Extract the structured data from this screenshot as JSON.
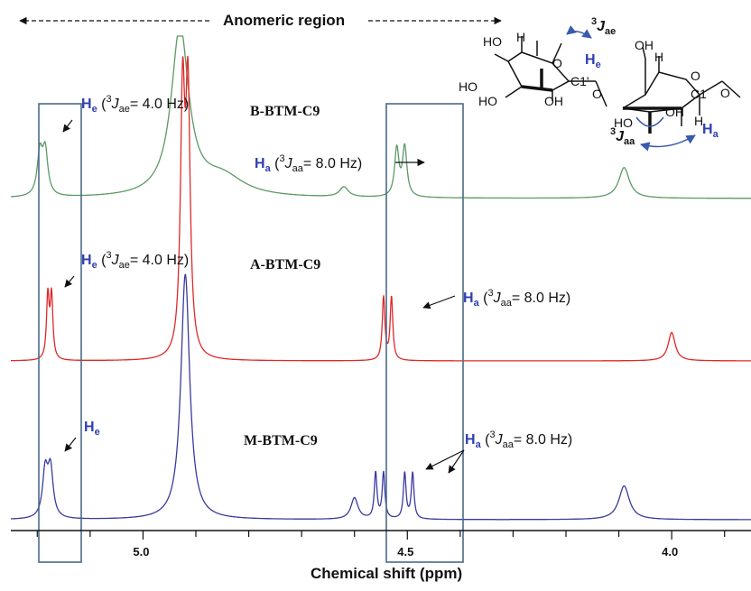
{
  "chart_data": {
    "type": "line",
    "title": "",
    "xlabel": "Chemical shift (ppm)",
    "ylabel": "",
    "xlim": [
      5.25,
      3.85
    ],
    "x_reversed": true,
    "x_ticks": [
      "5.0",
      "4.5",
      "4.0"
    ],
    "grid": false,
    "legend": "none",
    "region_label": "Anomeric region",
    "series": [
      {
        "name": "B-BTM-C9",
        "color": "#5a9a65",
        "peaks": [
          {
            "x": 5.195,
            "height": 0.75,
            "width": 0.006
          },
          {
            "x": 5.185,
            "height": 0.78,
            "width": 0.006
          },
          {
            "x": 4.93,
            "height": 3.0,
            "width": 0.02
          },
          {
            "x": 4.85,
            "height": 0.35,
            "width": 0.05
          },
          {
            "x": 4.62,
            "height": 0.18,
            "width": 0.01
          },
          {
            "x": 4.52,
            "height": 0.85,
            "width": 0.005
          },
          {
            "x": 4.505,
            "height": 0.88,
            "width": 0.005
          },
          {
            "x": 4.09,
            "height": 0.55,
            "width": 0.012
          }
        ]
      },
      {
        "name": "A-BTM-C9",
        "color": "#e02828",
        "peaks": [
          {
            "x": 5.18,
            "height": 1.0,
            "width": 0.003
          },
          {
            "x": 5.173,
            "height": 1.0,
            "width": 0.003
          },
          {
            "x": 4.925,
            "height": 4.0,
            "width": 0.005
          },
          {
            "x": 4.915,
            "height": 4.0,
            "width": 0.005
          },
          {
            "x": 4.545,
            "height": 1.0,
            "width": 0.003
          },
          {
            "x": 4.53,
            "height": 1.0,
            "width": 0.003
          },
          {
            "x": 4.0,
            "height": 0.45,
            "width": 0.008
          }
        ]
      },
      {
        "name": "M-BTM-C9",
        "color": "#3a3aa0",
        "peaks": [
          {
            "x": 5.185,
            "height": 0.75,
            "width": 0.006
          },
          {
            "x": 5.175,
            "height": 0.78,
            "width": 0.006
          },
          {
            "x": 4.92,
            "height": 4.0,
            "width": 0.01
          },
          {
            "x": 4.6,
            "height": 0.35,
            "width": 0.008
          },
          {
            "x": 4.56,
            "height": 0.75,
            "width": 0.003
          },
          {
            "x": 4.545,
            "height": 0.75,
            "width": 0.003
          },
          {
            "x": 4.505,
            "height": 0.75,
            "width": 0.003
          },
          {
            "x": 4.49,
            "height": 0.75,
            "width": 0.003
          },
          {
            "x": 4.09,
            "height": 0.55,
            "width": 0.012
          }
        ]
      }
    ],
    "annotations": {
      "b_he": {
        "h": "H",
        "sub": "e",
        "sup": "3",
        "j": "J",
        "jsub": "ae",
        "val": "= 4.0 Hz)"
      },
      "b_ha": {
        "h": "H",
        "sub": "a",
        "sup": "3",
        "j": "J",
        "jsub": "aa",
        "val": "= 8.0 Hz)"
      },
      "a_he": {
        "h": "H",
        "sub": "e",
        "sup": "3",
        "j": "J",
        "jsub": "ae",
        "val": "= 4.0 Hz)"
      },
      "a_ha": {
        "h": "H",
        "sub": "a",
        "sup": "3",
        "j": "J",
        "jsub": "aa",
        "val": "= 8.0 Hz)"
      },
      "m_he": {
        "h": "H",
        "sub": "e"
      },
      "m_ha": {
        "h": "H",
        "sub": "a",
        "sup": "3",
        "j": "J",
        "jsub": "aa",
        "val": "= 8.0 Hz)"
      }
    },
    "structure": {
      "labels": [
        "HO",
        "HO",
        "HO",
        "OH",
        "OH",
        "HO",
        "OH",
        "O",
        "O",
        "O",
        "O",
        "H",
        "H",
        "C1'",
        "C1",
        "OH",
        "H"
      ],
      "coupling_top": {
        "sup": "3",
        "j": "J",
        "sub": "ae"
      },
      "coupling_bottom": {
        "sup": "3",
        "j": "J",
        "sub": "aa"
      },
      "he": {
        "h": "H",
        "sub": "e"
      },
      "ha": {
        "h": "H",
        "sub": "a"
      }
    }
  }
}
